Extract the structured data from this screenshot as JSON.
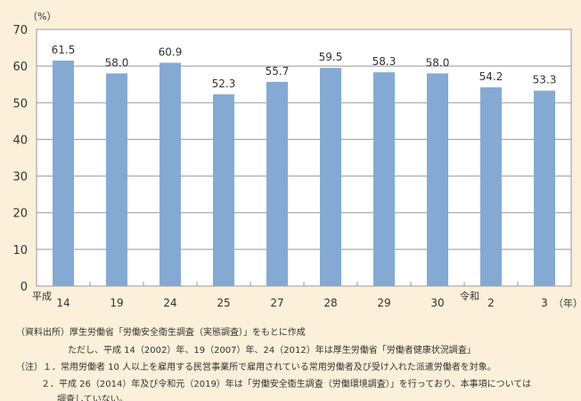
{
  "chart_data": {
    "type": "bar",
    "unit_label": "（%）",
    "x_unit_label": "（年）",
    "era_labels": [
      {
        "label": "平成",
        "at_index": 0
      },
      {
        "label": "令和",
        "at_index": 8
      }
    ],
    "categories": [
      "14",
      "19",
      "24",
      "25",
      "27",
      "28",
      "29",
      "30",
      "2",
      "3"
    ],
    "values": [
      61.5,
      58.0,
      60.9,
      52.3,
      55.7,
      59.5,
      58.3,
      58.0,
      54.2,
      53.3
    ],
    "value_labels": [
      "61.5",
      "58.0",
      "60.9",
      "52.3",
      "55.7",
      "59.5",
      "58.3",
      "58.0",
      "54.2",
      "53.3"
    ],
    "ylim": [
      0,
      70
    ],
    "yticks": [
      0,
      10,
      20,
      30,
      40,
      50,
      60,
      70
    ],
    "grid": true,
    "bar_color": "#84aad3"
  },
  "notes": {
    "source": "（資料出所）厚生労働省「労働安全衛生調査（実態調査）」をもとに作成",
    "source_2": "ただし、平成 14（2002）年、19（2007）年、24（2012）年は厚生労働省「労働者健康状況調査」",
    "note_1": "（注）１．常用労働者 10 人以上を雇用する民営事業所で雇用されている常用労働者及び受け入れた派遣労働者を対象。",
    "note_2": "２．平成 26（2014）年及び令和元（2019）年は「労働安全衛生調査（労働環境調査）」を行っており、本事項については",
    "note_2b": "調査していない。"
  }
}
